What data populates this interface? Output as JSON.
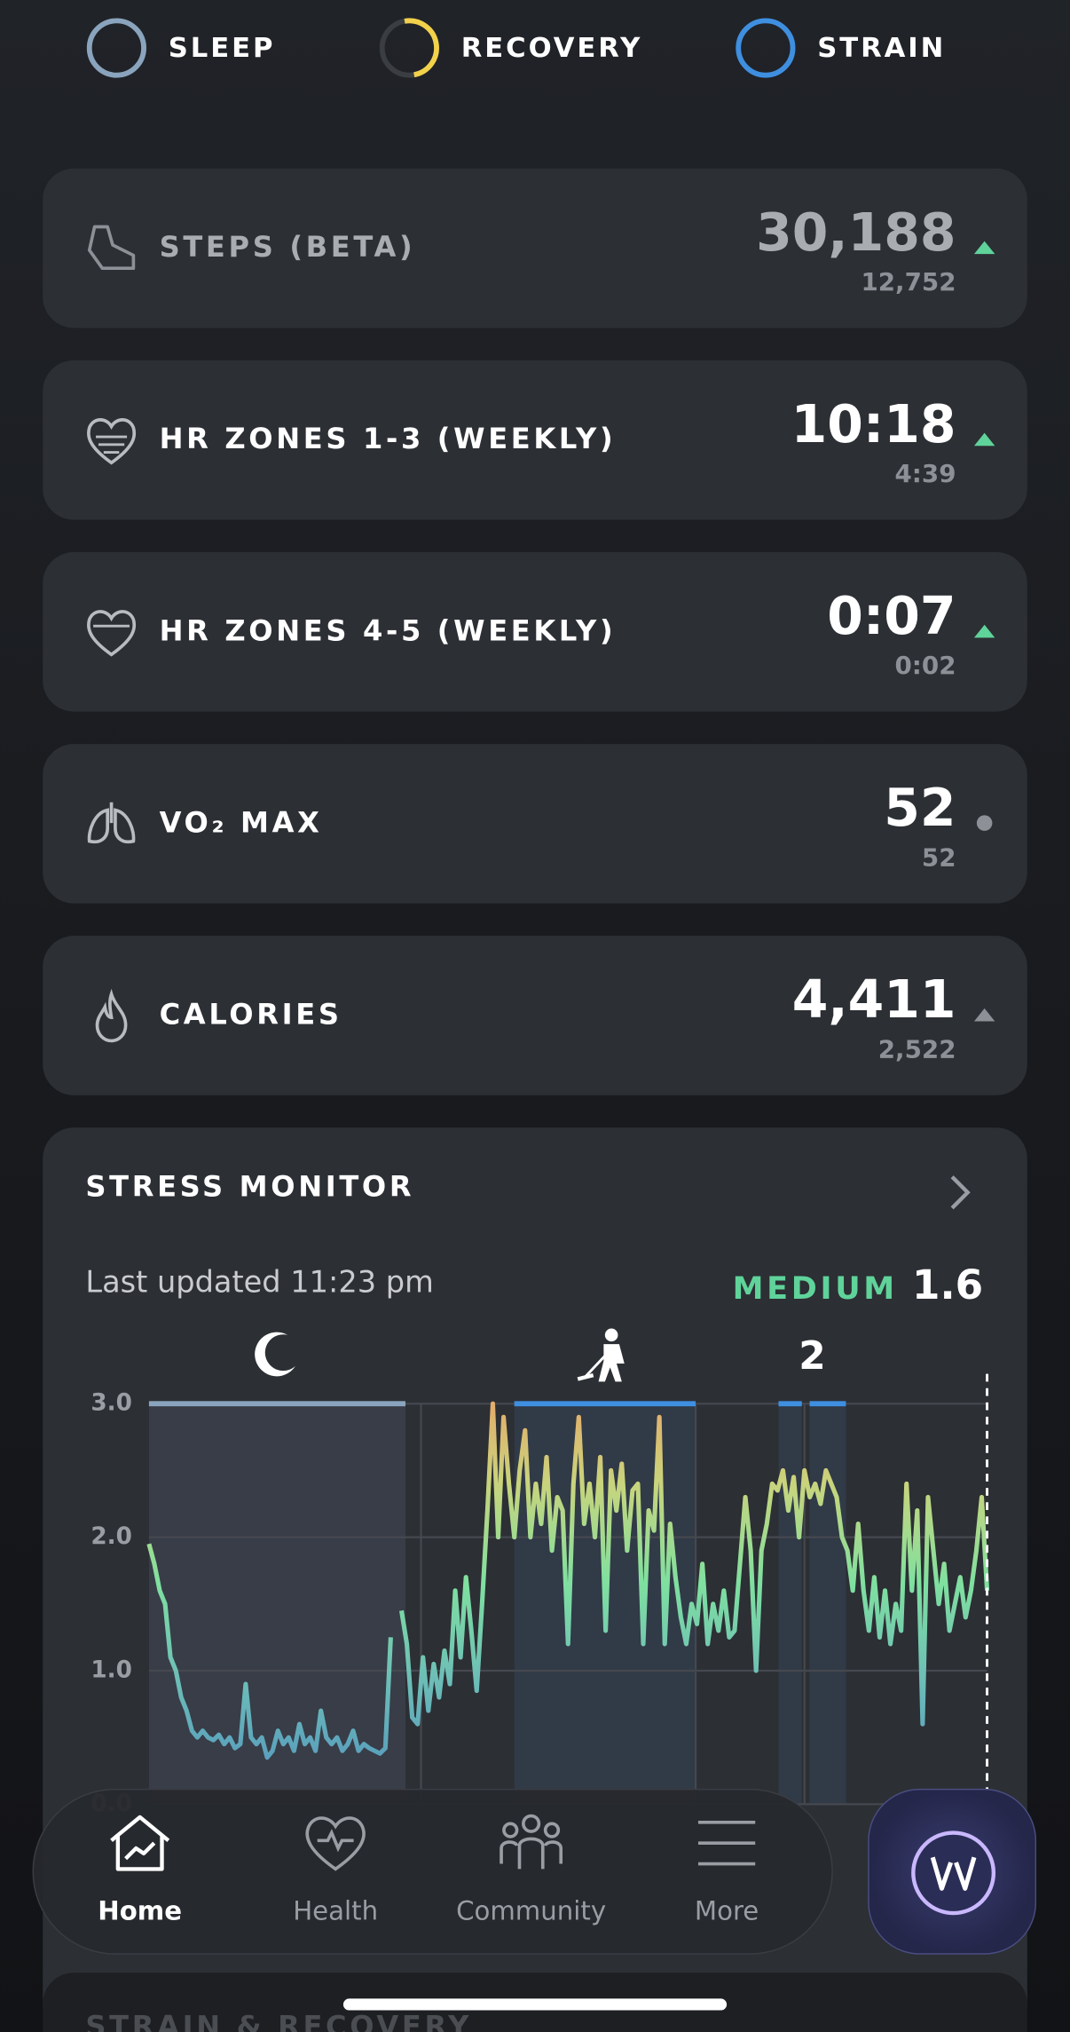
{
  "tabs": [
    "SLEEP",
    "RECOVERY",
    "STRAIN"
  ],
  "metrics": [
    {
      "label": "STEPS (BETA)",
      "value": "30,188",
      "baseline": "12,752"
    },
    {
      "label": "HR ZONES 1-3 (WEEKLY)",
      "value": "10:18",
      "baseline": "4:39"
    },
    {
      "label": "HR ZONES 4-5 (WEEKLY)",
      "value": "0:07",
      "baseline": "0:02"
    },
    {
      "label": "VO₂ MAX",
      "value": "52",
      "baseline": "52"
    },
    {
      "label": "CALORIES",
      "value": "4,411",
      "baseline": "2,522"
    }
  ],
  "stress_monitor": {
    "title": "STRESS MONITOR",
    "updated": "Last updated 11:23 pm",
    "level": "MEDIUM",
    "score": "1.6",
    "annotation": "2"
  },
  "chart_data": {
    "type": "line",
    "ylim": [
      0,
      3
    ],
    "yticks": [
      {
        "value": 0,
        "label": "0.0"
      },
      {
        "value": 1,
        "label": "1.0"
      },
      {
        "value": 2,
        "label": "2.0"
      },
      {
        "value": 3,
        "label": "3.0"
      }
    ],
    "grid": true,
    "values": [
      1.95,
      1.8,
      1.6,
      1.5,
      1.1,
      1.0,
      0.8,
      0.7,
      0.55,
      0.5,
      0.55,
      0.5,
      0.48,
      0.52,
      0.45,
      0.5,
      0.42,
      0.45,
      0.9,
      0.5,
      0.45,
      0.5,
      0.35,
      0.4,
      0.55,
      0.45,
      0.5,
      0.4,
      0.6,
      0.45,
      0.5,
      0.4,
      0.7,
      0.5,
      0.45,
      0.5,
      0.4,
      0.45,
      0.55,
      0.4,
      0.45,
      0.42,
      0.4,
      0.38,
      0.42,
      1.25,
      null,
      1.45,
      1.2,
      0.65,
      0.6,
      1.1,
      0.7,
      1.05,
      0.8,
      1.15,
      0.9,
      1.6,
      1.1,
      1.7,
      1.3,
      0.85,
      1.5,
      2.2,
      3.0,
      2.0,
      2.9,
      2.4,
      2.0,
      2.5,
      2.8,
      2.0,
      2.4,
      2.1,
      2.6,
      1.9,
      2.3,
      2.2,
      1.2,
      2.4,
      2.9,
      2.1,
      2.4,
      2.0,
      2.6,
      1.3,
      2.5,
      2.2,
      2.55,
      1.9,
      2.35,
      2.4,
      1.2,
      2.2,
      2.05,
      2.9,
      1.2,
      2.1,
      1.7,
      1.4,
      1.2,
      1.5,
      1.35,
      1.8,
      1.2,
      1.5,
      1.3,
      1.6,
      1.25,
      1.3,
      1.8,
      2.3,
      1.9,
      1.0,
      1.9,
      2.1,
      2.4,
      2.35,
      2.5,
      2.2,
      2.45,
      2.0,
      2.5,
      2.3,
      2.4,
      2.25,
      2.5,
      2.4,
      2.3,
      2.0,
      1.9,
      1.6,
      2.1,
      1.6,
      1.3,
      1.7,
      1.25,
      1.6,
      1.2,
      1.5,
      1.3,
      2.4,
      1.6,
      2.2,
      0.6,
      2.3,
      1.9,
      1.5,
      1.8,
      1.3,
      1.5,
      1.7,
      1.4,
      1.6,
      1.9,
      2.3,
      1.6
    ]
  },
  "nav": [
    "Home",
    "Health",
    "Community",
    "More"
  ],
  "next_card": "STRAIN & RECOVERY"
}
